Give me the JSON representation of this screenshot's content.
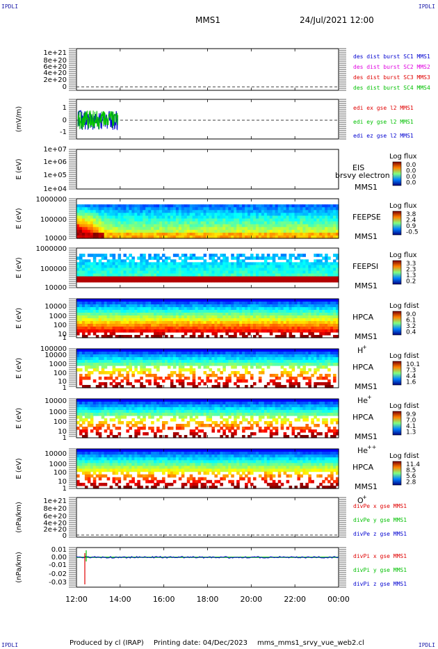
{
  "corner_label": "IPDLI",
  "header": {
    "spacecraft": "MMS1",
    "datetime": "24/Jul/2021 12:00"
  },
  "footer": {
    "produced_by": "Produced by cl (IRAP)",
    "printing_date": "Printing date: 04/Dec/2023",
    "file": "mms_mms1_srvy_vue_web2.cl"
  },
  "time_axis": [
    "12:00",
    "14:00",
    "16:00",
    "18:00",
    "20:00",
    "22:00",
    "00:00"
  ],
  "colors": {
    "red": "#e00000",
    "green": "#00c000",
    "blue": "#0000d0",
    "magenta": "#e000e0"
  },
  "chart_data": [
    {
      "type": "line",
      "panel": "des-dist",
      "ylabel": "",
      "ytick_labels": [
        "1e+21",
        "8e+20",
        "6e+20",
        "4e+20",
        "2e+20",
        "0"
      ],
      "legend": [
        {
          "name": "des dist burst SC1 MMS1",
          "color": "#0000d0"
        },
        {
          "name": "des dist burst SC2 MMS2",
          "color": "#e000e0"
        },
        {
          "name": "des dist burst SC3 MMS3",
          "color": "#e00000"
        },
        {
          "name": "des dist burst SC4 MMS4",
          "color": "#00c000"
        }
      ]
    },
    {
      "type": "line",
      "panel": "edi",
      "ylabel": "(mV/m)",
      "ytick_labels": [
        "1",
        "0",
        "-1"
      ],
      "ylim": [
        -1.6,
        1.6
      ],
      "data_span": [
        "12:00",
        "14:00"
      ],
      "legend": [
        {
          "name": "edi ex gse l2 MMS1",
          "color": "#e00000"
        },
        {
          "name": "edi ey gse l2 MMS1",
          "color": "#00c000"
        },
        {
          "name": "edi ez gse l2 MMS1",
          "color": "#0000d0"
        }
      ]
    },
    {
      "type": "heatmap",
      "panel": "eis",
      "ylabel": "E (eV)",
      "ytick_labels": [
        "1e+07",
        "1e+06",
        "1e+05",
        "1e+04"
      ],
      "labels": [
        "EIS",
        "MMS1"
      ],
      "overlap_text": "brsvy electron to",
      "colorbar": {
        "title": "Log flux",
        "ticks": [
          "0.0",
          "0.0",
          "0.0",
          "0.0"
        ]
      }
    },
    {
      "type": "heatmap",
      "panel": "feeps-e",
      "ylabel": "E (eV)",
      "ytick_labels": [
        "1000000",
        "100000",
        "10000"
      ],
      "labels": [
        "FEEPSE",
        "MMS1"
      ],
      "colorbar": {
        "title": "Log flux",
        "ticks": [
          "3.8",
          "2.4",
          "0.9",
          "-0.5"
        ]
      }
    },
    {
      "type": "heatmap",
      "panel": "feeps-i",
      "ylabel": "E (eV)",
      "ytick_labels": [
        "1000000",
        "100000",
        "10000"
      ],
      "labels": [
        "FEEPSI",
        "MMS1"
      ],
      "colorbar": {
        "title": "Log flux",
        "ticks": [
          "3.3",
          "2.3",
          "1.3",
          "0.2"
        ]
      }
    },
    {
      "type": "heatmap",
      "panel": "hpca-h",
      "ylabel": "E (eV)",
      "ytick_labels": [
        "10000",
        "1000",
        "100",
        "10",
        "1"
      ],
      "labels": [
        "HPCA",
        "MMS1"
      ],
      "species": "H",
      "species_charge": "+",
      "colorbar": {
        "title": "Log fdist",
        "ticks": [
          "9.0",
          "6.1",
          "3.2",
          "0.4"
        ]
      }
    },
    {
      "type": "heatmap",
      "panel": "hpca-he",
      "ylabel": "E (eV)",
      "ytick_labels": [
        "100000",
        "10000",
        "1000",
        "100",
        "10",
        "1"
      ],
      "labels": [
        "HPCA",
        "MMS1"
      ],
      "species": "He",
      "species_charge": "+",
      "colorbar": {
        "title": "Log fdist",
        "ticks": [
          "10.1",
          "7.3",
          "4.4",
          "1.6"
        ]
      }
    },
    {
      "type": "heatmap",
      "panel": "hpca-hepp",
      "ylabel": "E (eV)",
      "ytick_labels": [
        "10000",
        "1000",
        "100",
        "10",
        "1"
      ],
      "labels": [
        "HPCA",
        "MMS1"
      ],
      "species": "He",
      "species_charge": "++",
      "colorbar": {
        "title": "Log fdist",
        "ticks": [
          "9.9",
          "7.0",
          "4.1",
          "1.3"
        ]
      }
    },
    {
      "type": "heatmap",
      "panel": "hpca-o",
      "ylabel": "E (eV)",
      "ytick_labels": [
        "10000",
        "1000",
        "100",
        "10",
        "1"
      ],
      "labels": [
        "HPCA",
        "MMS1"
      ],
      "species": "O",
      "species_charge": "+",
      "colorbar": {
        "title": "Log fdist",
        "ticks": [
          "11.4",
          "8.5",
          "5.6",
          "2.8"
        ]
      }
    },
    {
      "type": "line",
      "panel": "divpe",
      "ylabel": "(nPa/km)",
      "ytick_labels": [
        "1e+21",
        "8e+20",
        "6e+20",
        "4e+20",
        "2e+20",
        "0"
      ],
      "legend": [
        {
          "name": "divPe x gse MMS1",
          "color": "#e00000"
        },
        {
          "name": "divPe y gse MMS1",
          "color": "#00c000"
        },
        {
          "name": "divPe z gse MMS1",
          "color": "#0000d0"
        }
      ]
    },
    {
      "type": "line",
      "panel": "divpi",
      "ylabel": "(nPa/km)",
      "ytick_labels": [
        "0.01",
        "0.00",
        "-0.01",
        "-0.02",
        "-0.03"
      ],
      "ylim": [
        -0.037,
        0.014
      ],
      "legend": [
        {
          "name": "divPi x gse MMS1",
          "color": "#e00000"
        },
        {
          "name": "divPi y gse MMS1",
          "color": "#00c000"
        },
        {
          "name": "divPi z gse MMS1",
          "color": "#0000d0"
        }
      ]
    }
  ]
}
